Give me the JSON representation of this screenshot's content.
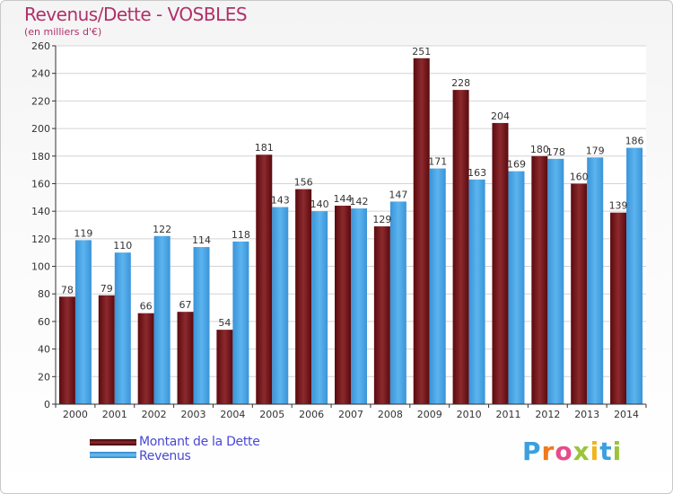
{
  "header": {
    "title": "Revenus/Dette - VOSBLES",
    "subtitle": "(en milliers d'€)"
  },
  "colors": {
    "dette": "#7a1418",
    "revenus": "#3f9fe0",
    "title": "#b0306a",
    "legend_text": "#4848d8"
  },
  "chart_data": {
    "type": "bar",
    "categories": [
      "2000",
      "2001",
      "2002",
      "2003",
      "2004",
      "2005",
      "2006",
      "2007",
      "2008",
      "2009",
      "2010",
      "2011",
      "2012",
      "2013",
      "2014"
    ],
    "series": [
      {
        "name": "Montant de la Dette",
        "values": [
          78,
          79,
          66,
          67,
          54,
          181,
          156,
          144,
          129,
          251,
          228,
          204,
          180,
          160,
          139
        ]
      },
      {
        "name": "Revenus",
        "values": [
          119,
          110,
          122,
          114,
          118,
          143,
          140,
          142,
          147,
          171,
          163,
          169,
          178,
          179,
          186
        ]
      }
    ],
    "ylim": [
      0,
      260
    ],
    "yticks": [
      0,
      20,
      40,
      60,
      80,
      100,
      120,
      140,
      160,
      180,
      200,
      220,
      240,
      260
    ],
    "grid": true,
    "legend_position": "bottom-left"
  },
  "legend": {
    "items": [
      {
        "label": "Montant de la Dette"
      },
      {
        "label": "Revenus"
      }
    ]
  },
  "logo": {
    "letters": [
      "P",
      "r",
      "o",
      "x",
      "i",
      "t",
      "i"
    ]
  }
}
